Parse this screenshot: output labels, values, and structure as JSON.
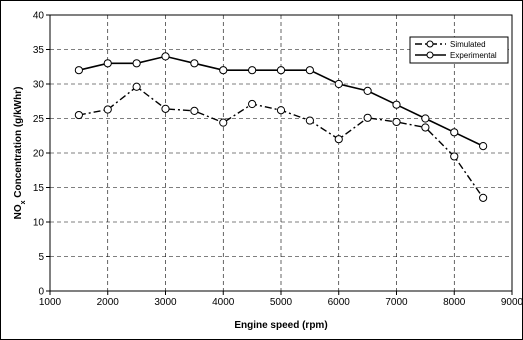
{
  "chart_data": {
    "type": "line",
    "xlabel": "Engine speed (rpm)",
    "ylabel_main": "NO",
    "ylabel_sub": "x",
    "ylabel_rest": " Concentration (g/kWhr)",
    "xlim": [
      1000,
      9000
    ],
    "ylim": [
      0,
      40
    ],
    "xticks": [
      1000,
      2000,
      3000,
      4000,
      5000,
      6000,
      7000,
      8000,
      9000
    ],
    "yticks": [
      0,
      5,
      10,
      15,
      20,
      25,
      30,
      35,
      40
    ],
    "grid": true,
    "legend_position": "top-right",
    "series": [
      {
        "name": "Simulated",
        "style": "dash-dot",
        "x": [
          1500,
          2000,
          2500,
          3000,
          3500,
          4000,
          4500,
          5000,
          5500,
          6000,
          6500,
          7000,
          7500,
          8000,
          8500
        ],
        "y": [
          25.5,
          26.3,
          29.6,
          26.4,
          26.1,
          24.4,
          27.1,
          26.2,
          24.7,
          22.0,
          25.1,
          24.5,
          23.7,
          19.5,
          13.5
        ]
      },
      {
        "name": "Experimental",
        "style": "solid",
        "x": [
          1500,
          2000,
          2500,
          3000,
          3500,
          4000,
          4500,
          5000,
          5500,
          6000,
          6500,
          7000,
          7500,
          8000,
          8500
        ],
        "y": [
          32,
          33,
          33,
          34,
          33,
          32,
          32,
          32,
          32,
          30,
          29,
          27,
          25,
          23,
          21
        ]
      }
    ]
  }
}
